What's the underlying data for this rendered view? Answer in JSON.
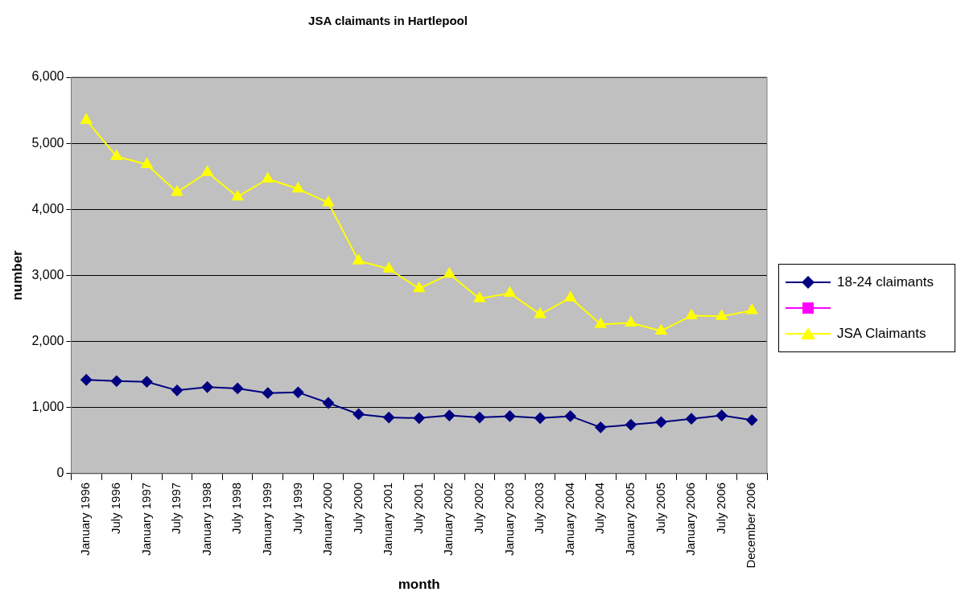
{
  "chart_data": {
    "type": "line",
    "title": "JSA claimants in Hartlepool",
    "xlabel": "month",
    "ylabel": "number",
    "categories": [
      "January 1996",
      "July 1996",
      "January 1997",
      "July 1997",
      "January 1998",
      "July 1998",
      "January 1999",
      "July 1999",
      "January 2000",
      "July 2000",
      "January 2001",
      "July 2001",
      "January 2002",
      "July 2002",
      "January 2003",
      "July 2003",
      "January 2004",
      "July 2004",
      "January 2005",
      "July 2005",
      "January 2006",
      "July 2006",
      "December 2006"
    ],
    "series": [
      {
        "name": "18-24 claimants",
        "color": "#000080",
        "marker": "diamond",
        "values": [
          1420,
          1400,
          1390,
          1260,
          1310,
          1290,
          1220,
          1230,
          1070,
          900,
          850,
          840,
          880,
          850,
          870,
          840,
          870,
          700,
          740,
          780,
          830,
          880,
          810
        ]
      },
      {
        "color": "#ff00ff",
        "marker": "square",
        "values": [
          null,
          null,
          null,
          null,
          null,
          null,
          null,
          null,
          null,
          null,
          null,
          null,
          null,
          null,
          null,
          null,
          null,
          null,
          null,
          null,
          null,
          null,
          null
        ]
      },
      {
        "name": "JSA Claimants",
        "color": "#ffff00",
        "marker": "triangle",
        "values": [
          5350,
          4800,
          4680,
          4260,
          4560,
          4190,
          4460,
          4310,
          4100,
          3220,
          3100,
          2800,
          3020,
          2650,
          2730,
          2410,
          2660,
          2260,
          2280,
          2160,
          2390,
          2380,
          2470
        ]
      }
    ],
    "ylim": [
      0,
      6000
    ],
    "yticks": [
      {
        "value": 0,
        "label": "0"
      },
      {
        "value": 1000,
        "label": "1,000"
      },
      {
        "value": 2000,
        "label": "2,000"
      },
      {
        "value": 3000,
        "label": "3,000"
      },
      {
        "value": 4000,
        "label": "4,000"
      },
      {
        "value": 5000,
        "label": "5,000"
      },
      {
        "value": 6000,
        "label": "6,000"
      }
    ],
    "grid": "y",
    "legend": "right",
    "line_style": "solid"
  }
}
